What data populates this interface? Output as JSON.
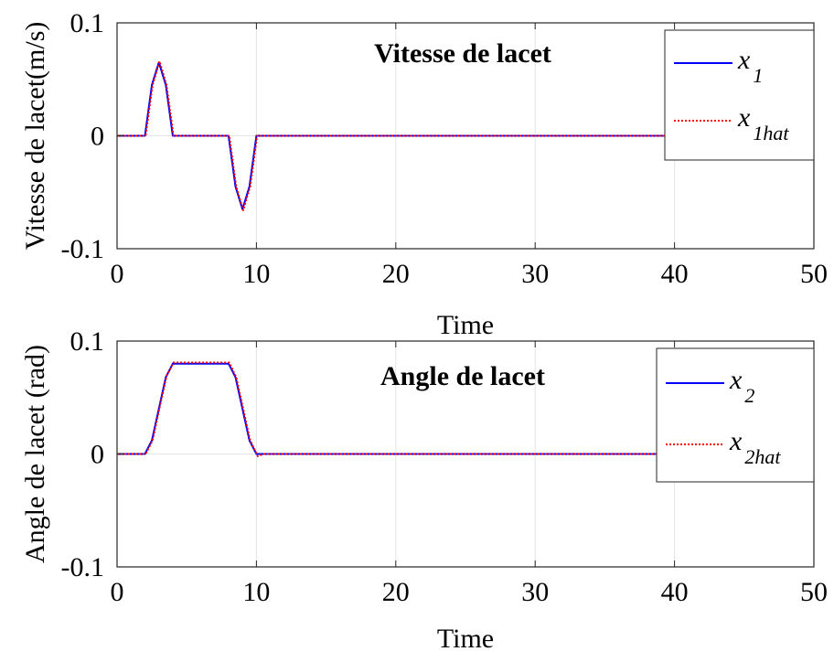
{
  "chart_data": [
    {
      "type": "line",
      "title": "Vitesse de lacet",
      "xlabel": "Time",
      "ylabel": "Vitesse de lacet(m/s)",
      "xlim": [
        0,
        50
      ],
      "ylim": [
        -0.1,
        0.1
      ],
      "xticks": [
        "0",
        "10",
        "20",
        "30",
        "40",
        "50"
      ],
      "yticks": [
        "0.1",
        "0",
        "-0.1"
      ],
      "grid": true,
      "legend_position": "top-right",
      "series": [
        {
          "name": "x1",
          "legend": {
            "base": "x",
            "sub": "1"
          },
          "color": "#0000ff",
          "style": "solid",
          "x": [
            0,
            2,
            2.5,
            3,
            3.5,
            4,
            8,
            8.5,
            9,
            9.5,
            10,
            50
          ],
          "y": [
            0,
            0,
            0.045,
            0.065,
            0.045,
            0,
            0,
            -0.045,
            -0.065,
            -0.045,
            0,
            0
          ]
        },
        {
          "name": "x1hat",
          "legend": {
            "base": "x",
            "sub": "1hat"
          },
          "color": "#ff0000",
          "style": "dotted",
          "x": [
            0,
            2.05,
            2.55,
            3.05,
            3.55,
            4.05,
            8.05,
            8.55,
            9.05,
            9.55,
            10.05,
            50
          ],
          "y": [
            0,
            0,
            0.045,
            0.066,
            0.045,
            0,
            0,
            -0.045,
            -0.066,
            -0.045,
            0,
            0
          ]
        }
      ]
    },
    {
      "type": "line",
      "title": "Angle de lacet",
      "xlabel": "Time",
      "ylabel": "Angle de lacet (rad)",
      "xlim": [
        0,
        50
      ],
      "ylim": [
        -0.1,
        0.1
      ],
      "xticks": [
        "0",
        "10",
        "20",
        "30",
        "40",
        "50"
      ],
      "yticks": [
        "0.1",
        "0",
        "-0.1"
      ],
      "grid": true,
      "legend_position": "top-right",
      "series": [
        {
          "name": "x2",
          "legend": {
            "base": "x",
            "sub": "2"
          },
          "color": "#0000ff",
          "style": "solid",
          "x": [
            0,
            2,
            2.5,
            3,
            3.5,
            4,
            8,
            8.5,
            9,
            9.5,
            10,
            50
          ],
          "y": [
            0,
            0,
            0.012,
            0.04,
            0.068,
            0.08,
            0.08,
            0.068,
            0.04,
            0.012,
            0,
            0
          ]
        },
        {
          "name": "x2hat",
          "legend": {
            "base": "x",
            "sub": "2hat"
          },
          "color": "#ff0000",
          "style": "dotted",
          "x": [
            0,
            2.05,
            2.55,
            3.05,
            3.55,
            4.05,
            8.05,
            8.55,
            9.05,
            9.55,
            10.1,
            10.5,
            50
          ],
          "y": [
            0,
            0,
            0.012,
            0.041,
            0.069,
            0.081,
            0.081,
            0.068,
            0.04,
            0.012,
            -0.002,
            0,
            0
          ]
        }
      ]
    }
  ]
}
